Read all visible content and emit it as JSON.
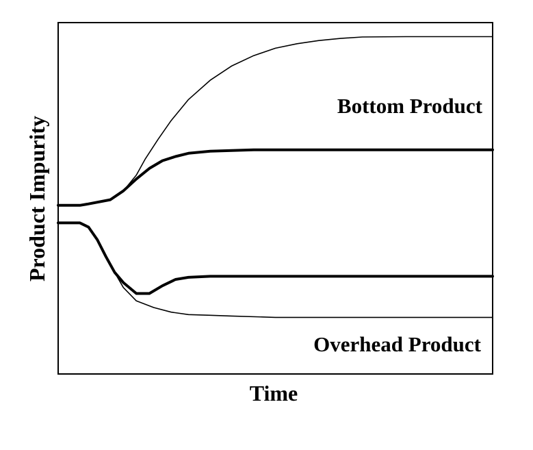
{
  "chart_data": {
    "type": "line",
    "xlabel": "Time",
    "ylabel": "Product Impurity",
    "xlim": [
      0,
      100
    ],
    "ylim": [
      0,
      100
    ],
    "grid": false,
    "annotations": [
      {
        "text": "Bottom Product"
      },
      {
        "text": "Overhead Product"
      }
    ],
    "series": [
      {
        "group": "Bottom Product",
        "style": "thin",
        "x": [
          0,
          5,
          7,
          12,
          15,
          18,
          20,
          23,
          26,
          30,
          35,
          40,
          45,
          50,
          55,
          60,
          65,
          70,
          80,
          90,
          100
        ],
        "y": [
          48,
          48,
          48.4,
          49.6,
          52.1,
          56.6,
          61.1,
          66.8,
          72.1,
          78.1,
          83.6,
          87.7,
          90.6,
          92.7,
          94,
          94.9,
          95.5,
          95.9,
          96,
          96,
          96
        ]
      },
      {
        "group": "Bottom Product",
        "style": "thick",
        "x": [
          0,
          5,
          7,
          12,
          15,
          18,
          21,
          24,
          27,
          30,
          35,
          40,
          45,
          50,
          60,
          70,
          80,
          90,
          100
        ],
        "y": [
          48,
          48,
          48.4,
          49.6,
          52.1,
          55.5,
          58.5,
          60.7,
          61.9,
          62.8,
          63.4,
          63.6,
          63.8,
          63.8,
          63.8,
          63.8,
          63.8,
          63.8,
          63.8
        ]
      },
      {
        "group": "Overhead Product",
        "style": "thick",
        "x": [
          0,
          5,
          7,
          9,
          11,
          13,
          15,
          18,
          21,
          24,
          27,
          30,
          35,
          45,
          60,
          80,
          100
        ],
        "y": [
          43,
          43,
          41.8,
          38.2,
          33.4,
          28.9,
          26,
          22.9,
          22.9,
          25.1,
          26.9,
          27.5,
          27.8,
          27.8,
          27.8,
          27.8,
          27.8
        ]
      },
      {
        "group": "Overhead Product",
        "style": "thin",
        "x": [
          0,
          5,
          7,
          9,
          11,
          13,
          15,
          18,
          22,
          26,
          30,
          35,
          40,
          50,
          60,
          70,
          80,
          100
        ],
        "y": [
          43,
          43,
          41.8,
          38.2,
          33.4,
          28.9,
          24.6,
          20.8,
          18.9,
          17.6,
          16.9,
          16.7,
          16.5,
          16.1,
          16.1,
          16.1,
          16.1,
          16.1
        ]
      }
    ]
  }
}
